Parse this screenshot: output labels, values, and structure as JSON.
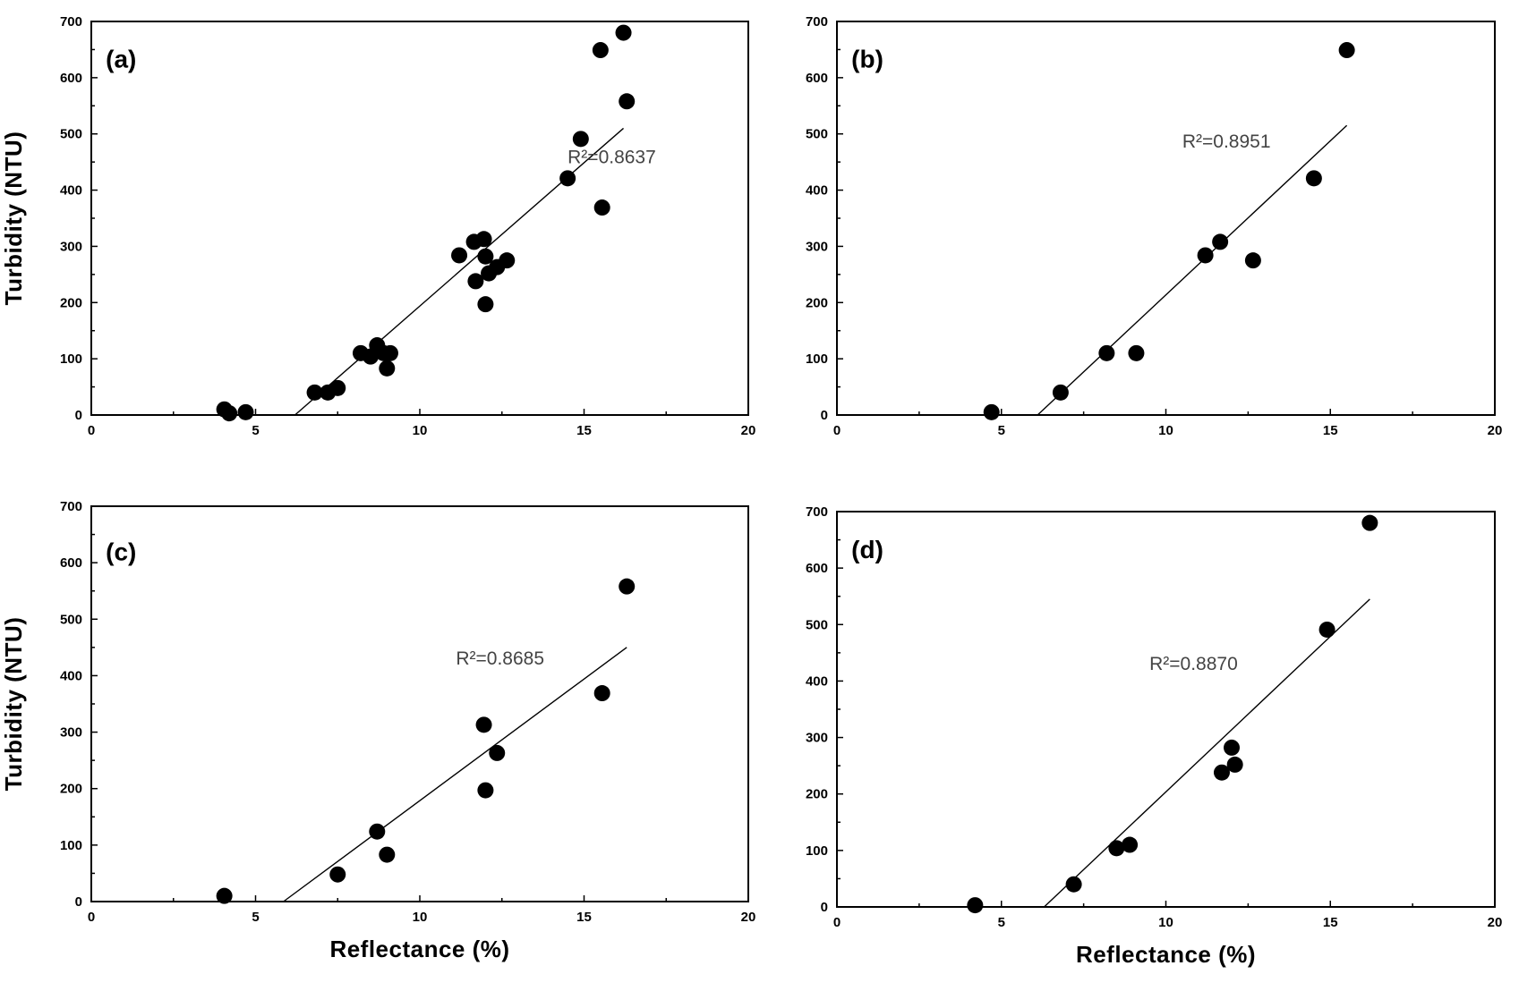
{
  "chart_data": [
    {
      "type": "scatter",
      "panel_label": "(a)",
      "r2_label": "R²=0.8637",
      "xlabel": "",
      "ylabel": "Turbidity (NTU)",
      "xlim": [
        0,
        20
      ],
      "ylim": [
        0,
        700
      ],
      "xticks": [
        "0",
        "5",
        "10",
        "15",
        "20"
      ],
      "yticks": [
        "0",
        "100",
        "200",
        "300",
        "400",
        "500",
        "600",
        "700"
      ],
      "fit_line": {
        "x": [
          6.2,
          16.2
        ],
        "y": [
          0,
          510
        ]
      },
      "points": [
        {
          "x": 4.05,
          "y": 10
        },
        {
          "x": 4.2,
          "y": 3
        },
        {
          "x": 4.7,
          "y": 5
        },
        {
          "x": 6.8,
          "y": 40
        },
        {
          "x": 7.2,
          "y": 40
        },
        {
          "x": 7.5,
          "y": 48
        },
        {
          "x": 8.2,
          "y": 110
        },
        {
          "x": 8.5,
          "y": 104
        },
        {
          "x": 8.7,
          "y": 124
        },
        {
          "x": 8.9,
          "y": 110
        },
        {
          "x": 9.0,
          "y": 83
        },
        {
          "x": 9.1,
          "y": 110
        },
        {
          "x": 11.2,
          "y": 284
        },
        {
          "x": 11.65,
          "y": 308
        },
        {
          "x": 11.7,
          "y": 238
        },
        {
          "x": 11.95,
          "y": 313
        },
        {
          "x": 12.0,
          "y": 282
        },
        {
          "x": 12.0,
          "y": 197
        },
        {
          "x": 12.1,
          "y": 252
        },
        {
          "x": 12.35,
          "y": 263
        },
        {
          "x": 12.65,
          "y": 275
        },
        {
          "x": 14.5,
          "y": 421
        },
        {
          "x": 14.9,
          "y": 491
        },
        {
          "x": 15.5,
          "y": 649
        },
        {
          "x": 15.55,
          "y": 369
        },
        {
          "x": 16.2,
          "y": 680
        },
        {
          "x": 16.3,
          "y": 558
        }
      ]
    },
    {
      "type": "scatter",
      "panel_label": "(b)",
      "r2_label": "R²=0.8951",
      "xlabel": "",
      "ylabel": "",
      "xlim": [
        0,
        20
      ],
      "ylim": [
        0,
        700
      ],
      "xticks": [
        "0",
        "5",
        "10",
        "15",
        "20"
      ],
      "yticks": [
        "0",
        "100",
        "200",
        "300",
        "400",
        "500",
        "600",
        "700"
      ],
      "fit_line": {
        "x": [
          6.1,
          15.5
        ],
        "y": [
          0,
          515
        ]
      },
      "points": [
        {
          "x": 4.7,
          "y": 5
        },
        {
          "x": 6.8,
          "y": 40
        },
        {
          "x": 8.2,
          "y": 110
        },
        {
          "x": 9.1,
          "y": 110
        },
        {
          "x": 11.2,
          "y": 284
        },
        {
          "x": 11.65,
          "y": 308
        },
        {
          "x": 12.65,
          "y": 275
        },
        {
          "x": 14.5,
          "y": 421
        },
        {
          "x": 15.5,
          "y": 649
        }
      ]
    },
    {
      "type": "scatter",
      "panel_label": "(c)",
      "r2_label": "R²=0.8685",
      "xlabel": "Reflectance (%)",
      "ylabel": "Turbidity (NTU)",
      "xlim": [
        0,
        20
      ],
      "ylim": [
        0,
        700
      ],
      "xticks": [
        "0",
        "5",
        "10",
        "15",
        "20"
      ],
      "yticks": [
        "0",
        "100",
        "200",
        "300",
        "400",
        "500",
        "600",
        "700"
      ],
      "fit_line": {
        "x": [
          5.85,
          16.3
        ],
        "y": [
          0,
          450
        ]
      },
      "points": [
        {
          "x": 4.05,
          "y": 10
        },
        {
          "x": 7.5,
          "y": 48
        },
        {
          "x": 8.7,
          "y": 124
        },
        {
          "x": 9.0,
          "y": 83
        },
        {
          "x": 11.95,
          "y": 313
        },
        {
          "x": 12.0,
          "y": 197
        },
        {
          "x": 12.35,
          "y": 263
        },
        {
          "x": 15.55,
          "y": 369
        },
        {
          "x": 16.3,
          "y": 558
        }
      ]
    },
    {
      "type": "scatter",
      "panel_label": "(d)",
      "r2_label": "R²=0.8870",
      "xlabel": "Reflectance (%)",
      "ylabel": "",
      "xlim": [
        0,
        20
      ],
      "ylim": [
        0,
        700
      ],
      "xticks": [
        "0",
        "5",
        "10",
        "15",
        "20"
      ],
      "yticks": [
        "0",
        "100",
        "200",
        "300",
        "400",
        "500",
        "600",
        "700"
      ],
      "fit_line": {
        "x": [
          6.3,
          16.2
        ],
        "y": [
          0,
          545
        ]
      },
      "points": [
        {
          "x": 4.2,
          "y": 3
        },
        {
          "x": 7.2,
          "y": 40
        },
        {
          "x": 8.5,
          "y": 104
        },
        {
          "x": 8.9,
          "y": 110
        },
        {
          "x": 11.7,
          "y": 238
        },
        {
          "x": 12.0,
          "y": 282
        },
        {
          "x": 12.1,
          "y": 252
        },
        {
          "x": 14.9,
          "y": 491
        },
        {
          "x": 16.2,
          "y": 680
        }
      ]
    }
  ]
}
